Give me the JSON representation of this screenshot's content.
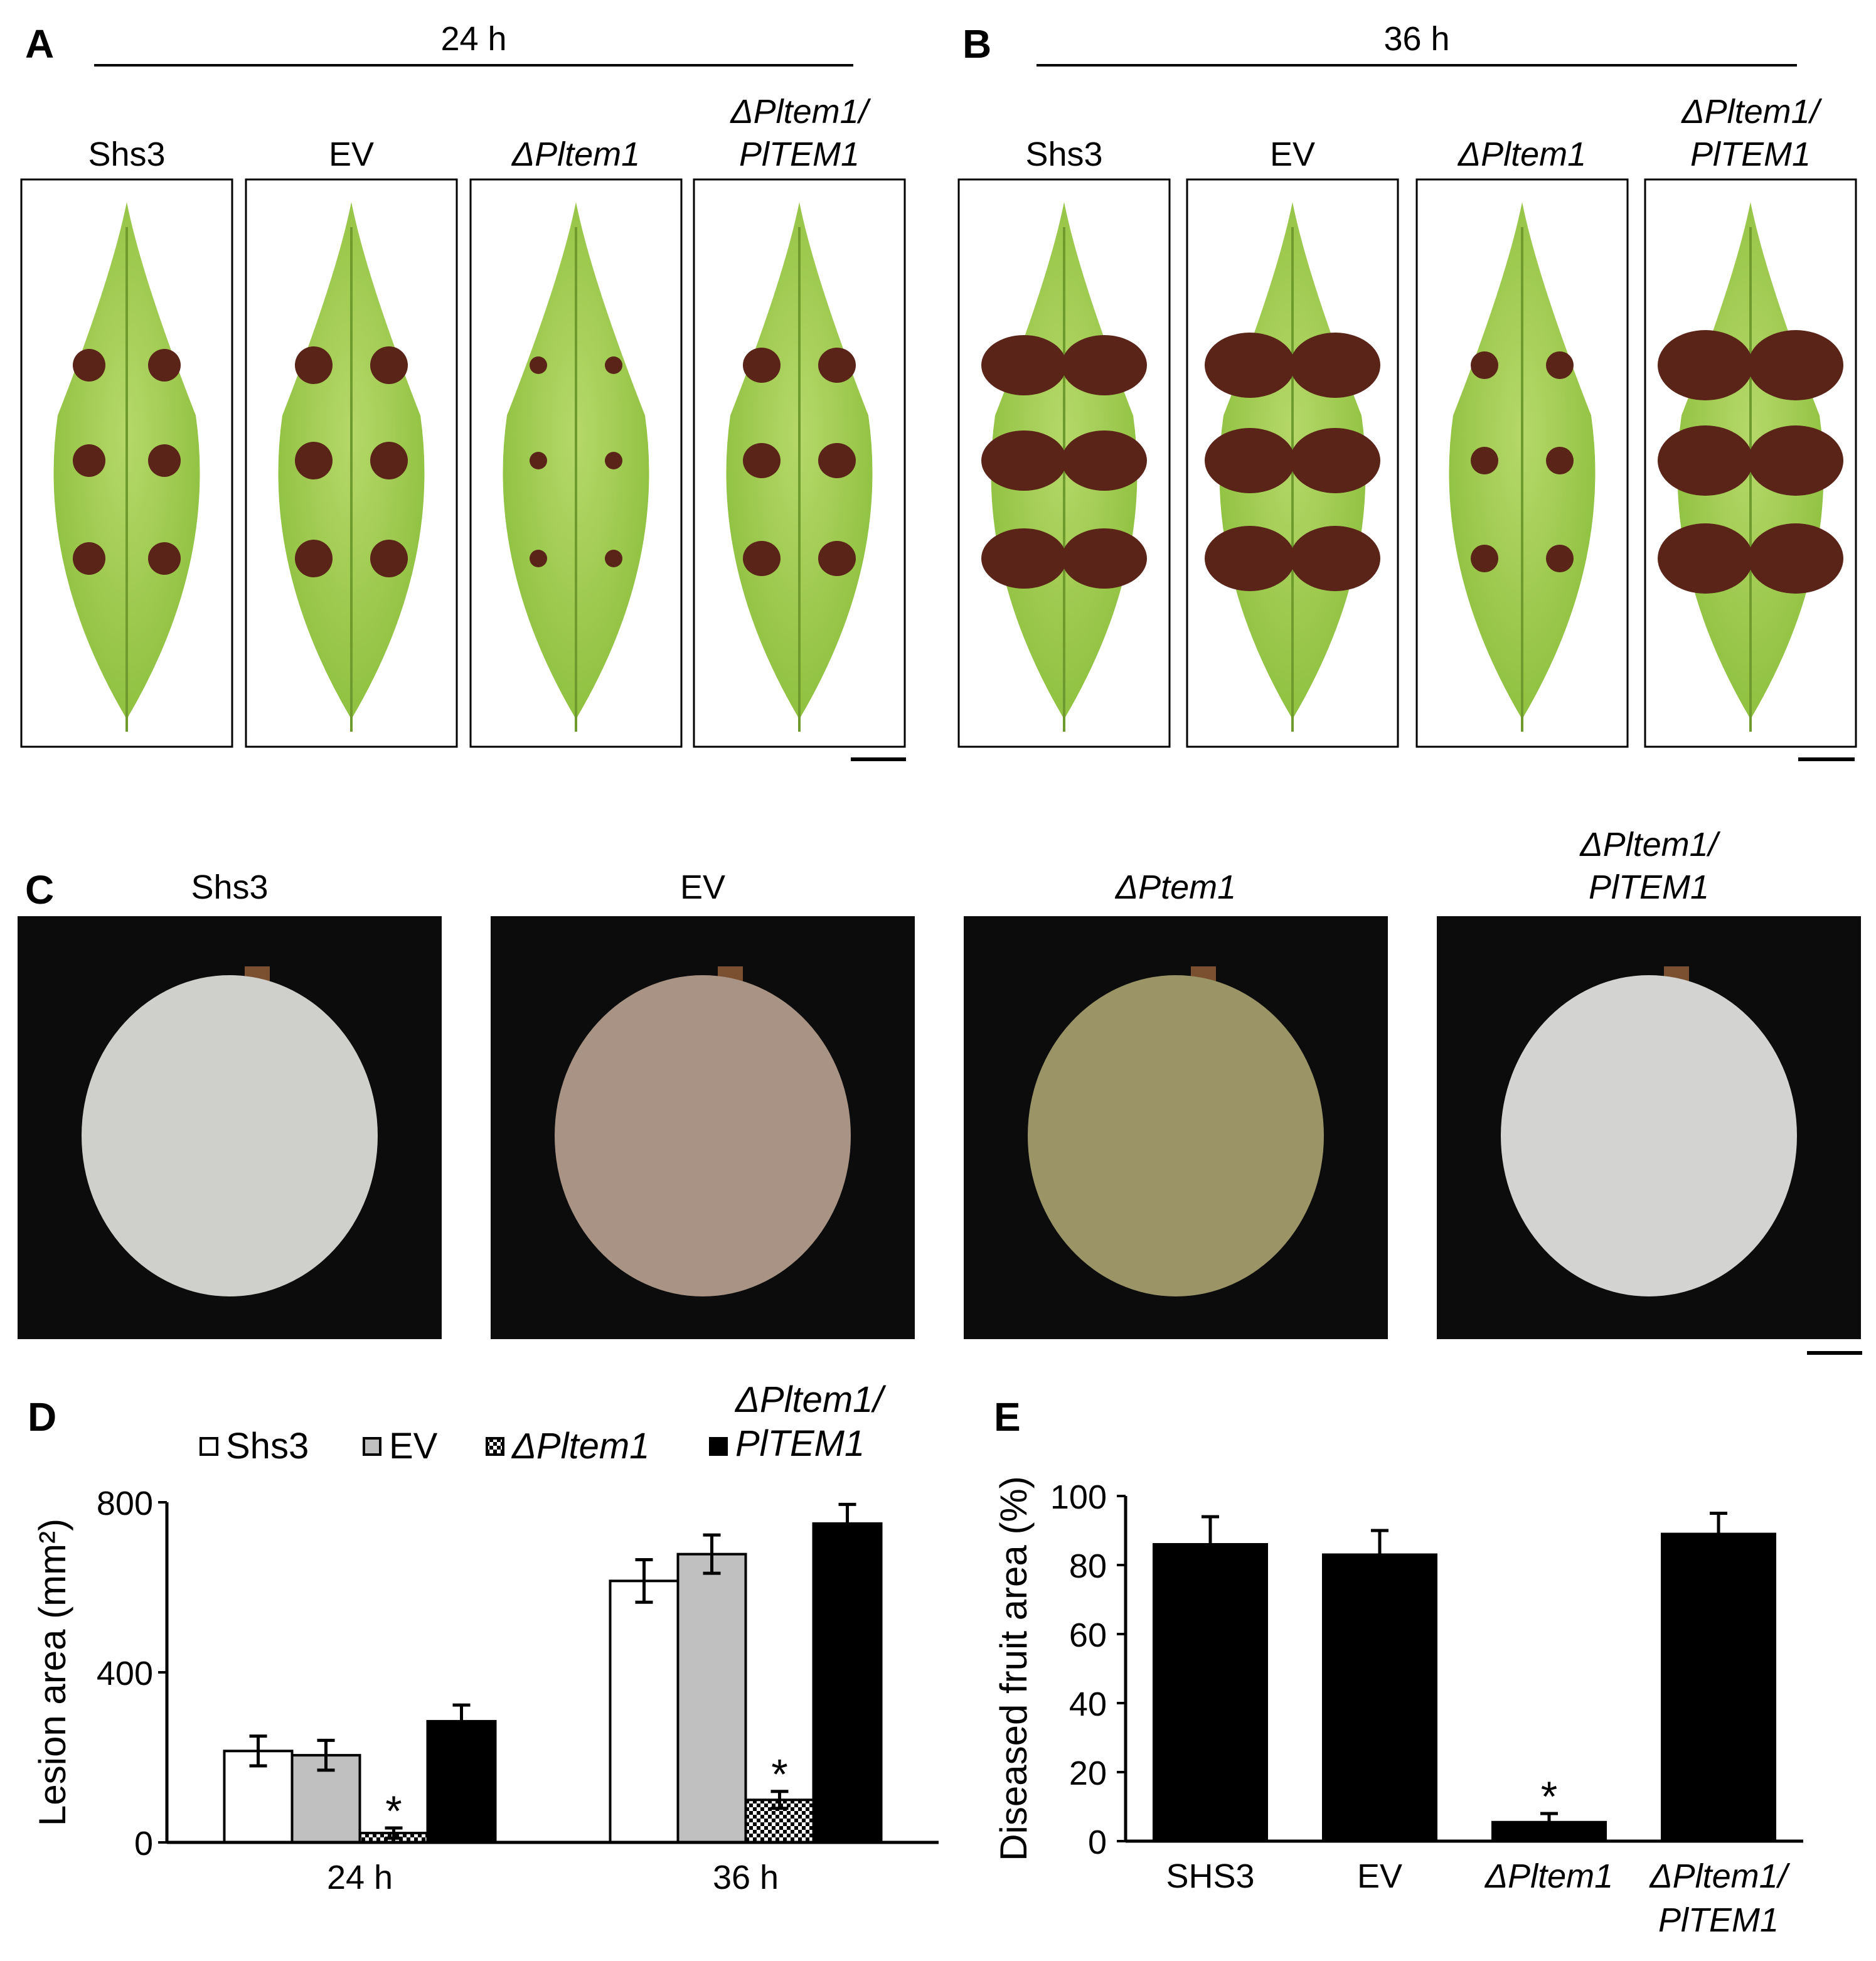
{
  "leaf_panels": [
    {
      "letter": "A",
      "time": "24 h",
      "labels": [
        [
          "Shs3"
        ],
        [
          "EV"
        ],
        [
          "ΔPltem1"
        ],
        [
          "ΔPltem1/",
          "PlTEM1"
        ]
      ]
    },
    {
      "letter": "B",
      "time": "36 h",
      "labels": [
        [
          "Shs3"
        ],
        [
          "EV"
        ],
        [
          "ΔPltem1"
        ],
        [
          "ΔPltem1/",
          "PlTEM1"
        ]
      ]
    }
  ],
  "fruit_panel": {
    "letter": "C",
    "labels": [
      [
        "Shs3"
      ],
      [
        "EV"
      ],
      [
        "ΔPtem1"
      ],
      [
        "ΔPltem1/",
        "PlTEM1"
      ]
    ]
  },
  "chart_data": [
    {
      "type": "bar",
      "letter": "D",
      "y_label": "Lesion area (mm²)",
      "categories": [
        "24 h",
        "36 h"
      ],
      "series": [
        {
          "name": "Shs3",
          "color": "#ffffff",
          "values": [
            215,
            615
          ],
          "errors": [
            35,
            50
          ]
        },
        {
          "name": "EV",
          "color": "#c0c0c0",
          "values": [
            205,
            678
          ],
          "errors": [
            35,
            45
          ]
        },
        {
          "name": "ΔPltem1",
          "color": "#000000",
          "pattern": "checkered",
          "values": [
            22,
            100
          ],
          "errors": [
            12,
            20
          ]
        },
        {
          "name": "ΔPltem1/PlTEM1",
          "color": "#000000",
          "values": [
            285,
            750
          ],
          "errors": [
            38,
            45
          ]
        }
      ],
      "annotations": [
        {
          "text": "*",
          "series": 2,
          "category": 0
        },
        {
          "text": "*",
          "series": 2,
          "category": 1
        }
      ],
      "ylim": [
        0,
        800
      ],
      "yticks": [
        0,
        400,
        800
      ]
    },
    {
      "type": "bar",
      "letter": "E",
      "y_label": "Diseased fruit area (%)",
      "categories": [
        "SHS3",
        "EV",
        "ΔPltem1",
        "ΔPltem1/PlTEM1"
      ],
      "values": [
        86,
        83,
        5.5,
        89
      ],
      "errors": [
        8,
        7,
        2.5,
        6
      ],
      "color": "#000000",
      "annotations": [
        {
          "text": "*",
          "category": 2
        }
      ],
      "ylim": [
        0,
        100
      ],
      "yticks": [
        0,
        20,
        40,
        60,
        80,
        100
      ]
    }
  ]
}
